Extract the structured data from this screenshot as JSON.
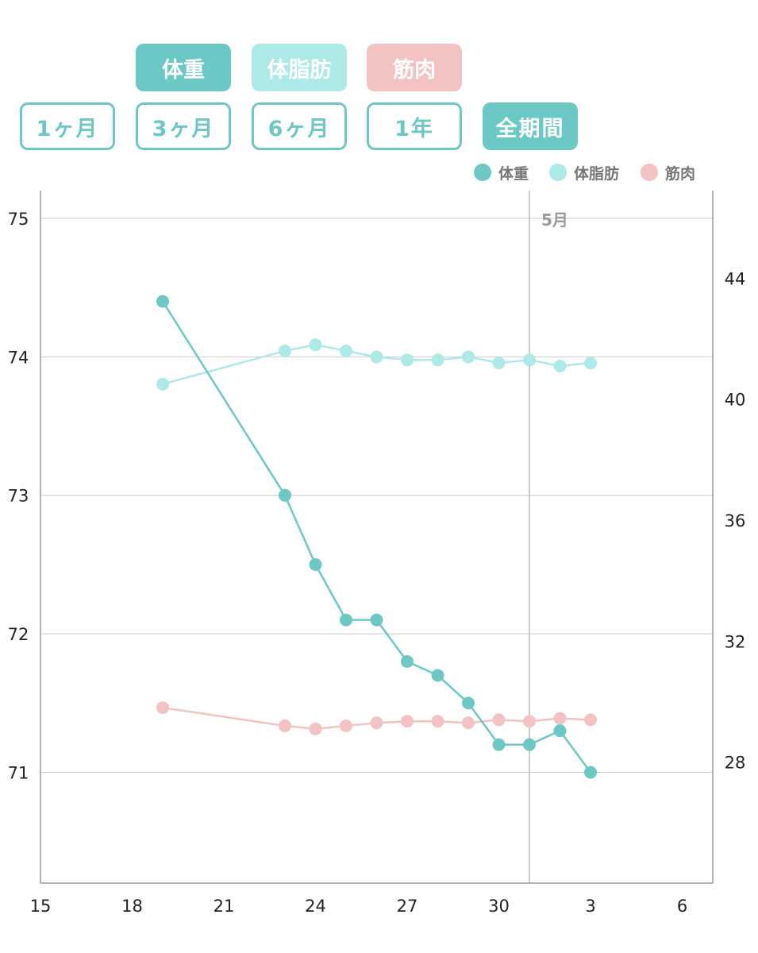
{
  "metric_tabs": [
    {
      "label": "体重",
      "color": "#6cc8c4"
    },
    {
      "label": "体脂肪",
      "color": "#ade9e6"
    },
    {
      "label": "筋肉",
      "color": "#f3c2c2"
    }
  ],
  "period_tabs": [
    {
      "label": "1ヶ月",
      "selected": false
    },
    {
      "label": "3ヶ月",
      "selected": false
    },
    {
      "label": "6ヶ月",
      "selected": false
    },
    {
      "label": "1年",
      "selected": false
    },
    {
      "label": "全期間",
      "selected": true
    }
  ],
  "chart_data": {
    "type": "line",
    "x_tick_labels": [
      "15",
      "18",
      "21",
      "24",
      "27",
      "30",
      "3",
      "6"
    ],
    "x_tick_days": [
      15,
      18,
      21,
      24,
      27,
      30,
      33,
      36
    ],
    "xlim": [
      15,
      37
    ],
    "month_marker": {
      "label": "5月",
      "day": 31
    },
    "y_left": {
      "ticks": [
        75,
        74,
        73,
        72,
        71
      ],
      "lim": [
        70.2,
        75.2
      ]
    },
    "y_right": {
      "ticks": [
        44,
        40,
        36,
        32,
        28
      ],
      "lim": [
        24.0,
        46.9
      ]
    },
    "legend": {
      "position": "top-right"
    },
    "grid": true,
    "series": [
      {
        "name": "体重",
        "color": "#6cc8c4",
        "axis": "left",
        "x": [
          19,
          23,
          24,
          25,
          26,
          27,
          28,
          29,
          30,
          31,
          32,
          33
        ],
        "values": [
          74.4,
          73.0,
          72.5,
          72.1,
          72.1,
          71.8,
          71.7,
          71.5,
          71.2,
          71.2,
          71.3,
          71.0
        ]
      },
      {
        "name": "体脂肪",
        "color": "#ade9e6",
        "axis": "right",
        "x": [
          19,
          23,
          24,
          25,
          26,
          27,
          28,
          29,
          30,
          31,
          32,
          33
        ],
        "values": [
          40.5,
          41.6,
          41.8,
          41.6,
          41.4,
          41.3,
          41.3,
          41.4,
          41.2,
          41.3,
          41.1,
          41.2
        ]
      },
      {
        "name": "筋肉",
        "color": "#f3c2c2",
        "axis": "right",
        "x": [
          19,
          23,
          24,
          25,
          26,
          27,
          28,
          29,
          30,
          31,
          32,
          33
        ],
        "values": [
          29.8,
          29.2,
          29.1,
          29.2,
          29.3,
          29.35,
          29.35,
          29.3,
          29.4,
          29.35,
          29.45,
          29.4
        ]
      }
    ]
  }
}
